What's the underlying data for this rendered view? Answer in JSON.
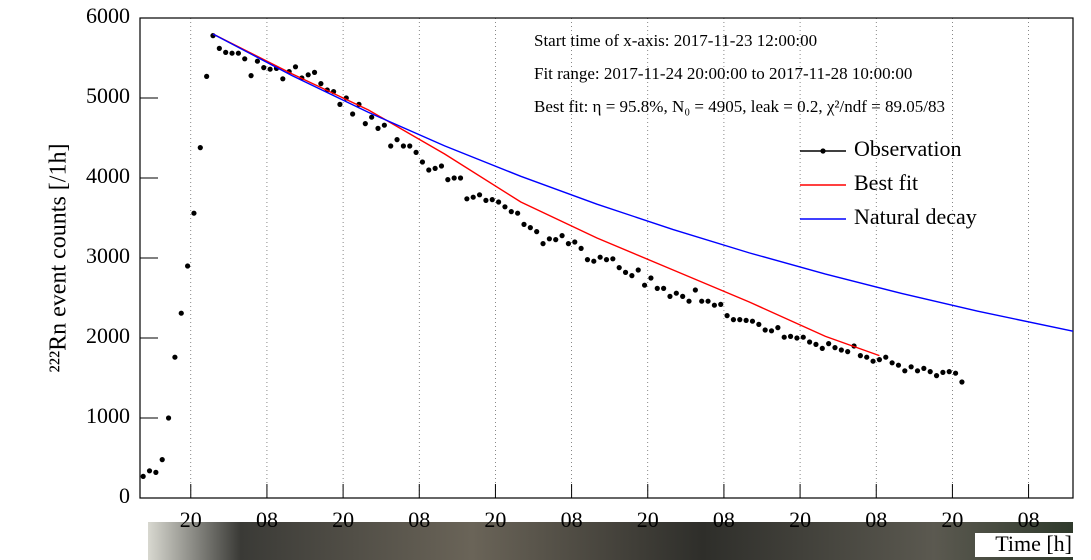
{
  "chart_data": {
    "type": "scatter",
    "y_label": "²²²Rn event counts [/1h]",
    "x_label": "Time [h]",
    "annotations": [
      "Start time of x-axis: 2017-11-23 12:00:00",
      "Fit range: 2017-11-24 20:00:00 to 2017-11-28 10:00:00",
      "Best fit: η = 95.8%, N₀ = 4905, leak = 0.2, χ²/ndf = 89.05/83"
    ],
    "xlim": [
      0,
      147
    ],
    "ylim": [
      0,
      6000
    ],
    "xticks": [
      {
        "value": 8,
        "label": "20"
      },
      {
        "value": 20,
        "label": "08"
      },
      {
        "value": 32,
        "label": "20"
      },
      {
        "value": 44,
        "label": "08"
      },
      {
        "value": 56,
        "label": "20"
      },
      {
        "value": 68,
        "label": "08"
      },
      {
        "value": 80,
        "label": "20"
      },
      {
        "value": 92,
        "label": "08"
      },
      {
        "value": 104,
        "label": "20"
      },
      {
        "value": 116,
        "label": "08"
      },
      {
        "value": 128,
        "label": "20"
      },
      {
        "value": 140,
        "label": "08"
      }
    ],
    "yticks": [
      0,
      1000,
      2000,
      3000,
      4000,
      5000,
      6000
    ],
    "grid": "x",
    "legend": "top-right",
    "series": [
      {
        "name": "Observation",
        "color": "#000000",
        "style": "points",
        "x": [
          0.5,
          1.5,
          2.5,
          3.5,
          4.5,
          5.5,
          6.5,
          7.5,
          8.5,
          9.5,
          10.5,
          11.5,
          12.5,
          13.5,
          14.5,
          15.5,
          16.5,
          17.5,
          18.5,
          19.5,
          20.5,
          21.5,
          22.5,
          23.5,
          24.5,
          25.5,
          26.5,
          27.5,
          28.5,
          29.5,
          30.5,
          31.5,
          32.5,
          33.5,
          34.5,
          35.5,
          36.5,
          37.5,
          38.5,
          39.5,
          40.5,
          41.5,
          42.5,
          43.5,
          44.5,
          45.5,
          46.5,
          47.5,
          48.5,
          49.5,
          50.5,
          51.5,
          52.5,
          53.5,
          54.5,
          55.5,
          56.5,
          57.5,
          58.5,
          59.5,
          60.5,
          61.5,
          62.5,
          63.5,
          64.5,
          65.5,
          66.5,
          67.5,
          68.5,
          69.5,
          70.5,
          71.5,
          72.5,
          73.5,
          74.5,
          75.5,
          76.5,
          77.5,
          78.5,
          79.5,
          80.5,
          81.5,
          82.5,
          83.5,
          84.5,
          85.5,
          86.5,
          87.5,
          88.5,
          89.5,
          90.5,
          91.5,
          92.5,
          93.5,
          94.5,
          95.5,
          96.5,
          97.5,
          98.5,
          99.5,
          100.5,
          101.5,
          102.5,
          103.5,
          104.5,
          105.5,
          106.5,
          107.5,
          108.5,
          109.5,
          110.5,
          111.5,
          112.5,
          113.5,
          114.5,
          115.5,
          116.5,
          117.5,
          118.5,
          119.5,
          120.5,
          121.5,
          122.5,
          123.5,
          124.5,
          125.5,
          126.5,
          127.5,
          128.5,
          129.5
        ],
        "values": [
          270,
          340,
          320,
          480,
          1000,
          1760,
          2310,
          2900,
          3560,
          4380,
          5270,
          5780,
          5620,
          5570,
          5560,
          5560,
          5490,
          5280,
          5460,
          5380,
          5360,
          5370,
          5240,
          5330,
          5390,
          5250,
          5290,
          5320,
          5180,
          5100,
          5080,
          4920,
          5000,
          4800,
          4920,
          4680,
          4760,
          4620,
          4660,
          4400,
          4480,
          4400,
          4400,
          4320,
          4200,
          4100,
          4120,
          4150,
          3980,
          4000,
          4000,
          3740,
          3760,
          3790,
          3720,
          3730,
          3700,
          3640,
          3580,
          3560,
          3420,
          3380,
          3330,
          3180,
          3240,
          3230,
          3280,
          3180,
          3200,
          3120,
          2980,
          2960,
          3010,
          2980,
          2990,
          2880,
          2820,
          2780,
          2850,
          2660,
          2750,
          2620,
          2620,
          2520,
          2560,
          2520,
          2460,
          2600,
          2460,
          2460,
          2410,
          2420,
          2280,
          2230,
          2230,
          2220,
          2210,
          2170,
          2100,
          2090,
          2130,
          2010,
          2020,
          2000,
          2010,
          1950,
          1920,
          1870,
          1930,
          1880,
          1850,
          1830,
          1900,
          1780,
          1760,
          1710,
          1730,
          1760,
          1690,
          1660,
          1590,
          1640,
          1590,
          1620,
          1580,
          1530,
          1570,
          1580,
          1560,
          1450
        ]
      },
      {
        "name": "Best fit",
        "color": "#ff0000",
        "style": "line",
        "x": [
          11.5,
          24,
          36,
          48,
          60,
          72,
          84,
          96,
          108,
          116.5
        ],
        "values": [
          5800,
          5300,
          4850,
          4300,
          3700,
          3250,
          2850,
          2450,
          2020,
          1780
        ]
      },
      {
        "name": "Natural decay",
        "color": "#0000ff",
        "style": "line",
        "x": [
          11.5,
          24,
          36,
          48,
          60,
          72,
          84,
          96,
          108,
          120,
          132,
          147
        ],
        "values": [
          5800,
          5278,
          4820,
          4402,
          4021,
          3673,
          3355,
          3064,
          2799,
          2557,
          2335,
          2085
        ]
      }
    ]
  }
}
